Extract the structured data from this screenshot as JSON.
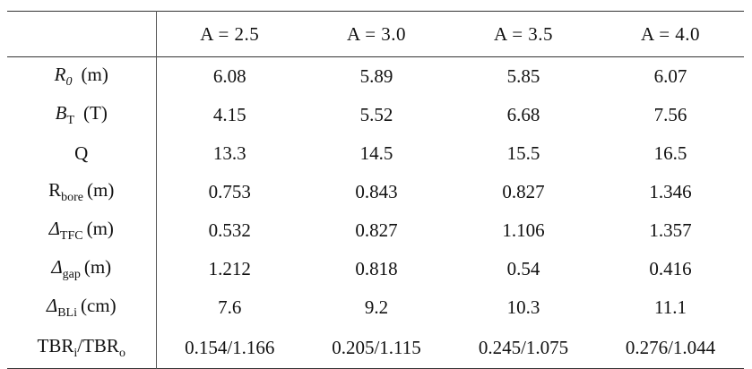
{
  "table": {
    "header": [
      "",
      "A = 2.5",
      "A = 3.0",
      "A = 3.5",
      "A = 4.0"
    ],
    "rows": [
      {
        "label": {
          "main": "R",
          "sub": "0",
          "unit": "(m)"
        },
        "values": [
          "6.08",
          "5.89",
          "5.85",
          "6.07"
        ]
      },
      {
        "label": {
          "main": "B",
          "sub": "T",
          "unit": "(T)"
        },
        "values": [
          "4.15",
          "5.52",
          "6.68",
          "7.56"
        ]
      },
      {
        "label": {
          "main": "Q"
        },
        "values": [
          "13.3",
          "14.5",
          "15.5",
          "16.5"
        ]
      },
      {
        "label": {
          "main": "R",
          "sub": "bore",
          "unit": "(m)"
        },
        "values": [
          "0.753",
          "0.843",
          "0.827",
          "1.346"
        ]
      },
      {
        "label": {
          "main": "Δ",
          "sub": "TFC",
          "unit": "(m)"
        },
        "values": [
          "0.532",
          "0.827",
          "1.106",
          "1.357"
        ]
      },
      {
        "label": {
          "main": "Δ",
          "sub": "gap",
          "unit": "(m)"
        },
        "values": [
          "1.212",
          "0.818",
          "0.54",
          "0.416"
        ]
      },
      {
        "label": {
          "main": "Δ",
          "sub": "BLi",
          "unit": "(cm)"
        },
        "values": [
          "7.6",
          "9.2",
          "10.3",
          "11.1"
        ]
      },
      {
        "label": {
          "main": "TBR",
          "sub": "i",
          "sep": "/TBR",
          "sub2": "o"
        },
        "values": [
          "0.154/1.166",
          "0.205/1.115",
          "0.245/1.075",
          "0.276/1.044"
        ]
      }
    ]
  }
}
